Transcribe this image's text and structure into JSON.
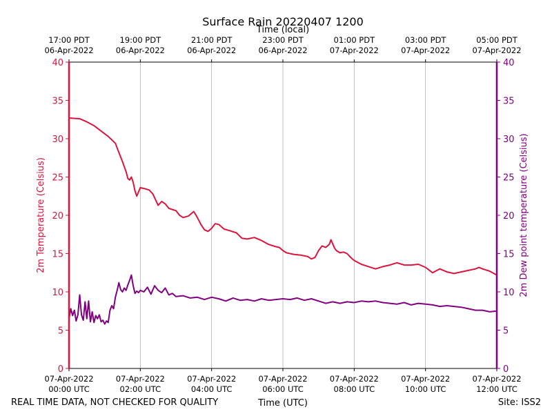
{
  "chart_data": {
    "type": "line",
    "title": "Surface Rain 20220407 1200",
    "top_axis_label": "Time (local)",
    "xlabel": "Time (UTC)",
    "ylabel_left": "2m Temperature (Celsius)",
    "ylabel_right": "2m Dew point temperature (Celsius)",
    "footer_left": "REAL TIME DATA, NOT CHECKED FOR QUALITY",
    "footer_right": "Site: ISS2",
    "xlim_hours_utc": [
      0,
      12
    ],
    "ylim": [
      0,
      40
    ],
    "y_ticks": [
      "0",
      "5",
      "10",
      "15",
      "20",
      "25",
      "30",
      "35",
      "40"
    ],
    "grid": "vertical",
    "bottom_ticks": [
      {
        "hour": 0,
        "date": "07-Apr-2022",
        "time": "00:00 UTC"
      },
      {
        "hour": 2,
        "date": "07-Apr-2022",
        "time": "02:00 UTC"
      },
      {
        "hour": 4,
        "date": "07-Apr-2022",
        "time": "04:00 UTC"
      },
      {
        "hour": 6,
        "date": "07-Apr-2022",
        "time": "06:00 UTC"
      },
      {
        "hour": 8,
        "date": "07-Apr-2022",
        "time": "08:00 UTC"
      },
      {
        "hour": 10,
        "date": "07-Apr-2022",
        "time": "10:00 UTC"
      },
      {
        "hour": 12,
        "date": "07-Apr-2022",
        "time": "12:00 UTC"
      }
    ],
    "top_ticks": [
      {
        "hour": 0,
        "time": "17:00 PDT",
        "date": "06-Apr-2022"
      },
      {
        "hour": 2,
        "time": "19:00 PDT",
        "date": "06-Apr-2022"
      },
      {
        "hour": 4,
        "time": "21:00 PDT",
        "date": "06-Apr-2022"
      },
      {
        "hour": 6,
        "time": "23:00 PDT",
        "date": "06-Apr-2022"
      },
      {
        "hour": 8,
        "time": "01:00 PDT",
        "date": "07-Apr-2022"
      },
      {
        "hour": 10,
        "time": "03:00 PDT",
        "date": "07-Apr-2022"
      },
      {
        "hour": 12,
        "time": "05:00 PDT",
        "date": "07-Apr-2022"
      }
    ],
    "series": [
      {
        "name": "2m Temperature",
        "color": "#dc143c",
        "x": [
          0,
          0.3,
          0.5,
          0.7,
          0.9,
          1.1,
          1.3,
          1.4,
          1.5,
          1.6,
          1.65,
          1.7,
          1.75,
          1.8,
          1.85,
          1.9,
          2.0,
          2.1,
          2.25,
          2.35,
          2.5,
          2.6,
          2.7,
          2.8,
          3.0,
          3.1,
          3.2,
          3.35,
          3.5,
          3.6,
          3.7,
          3.8,
          3.9,
          4.0,
          4.1,
          4.2,
          4.35,
          4.5,
          4.7,
          4.85,
          5.0,
          5.2,
          5.4,
          5.6,
          5.8,
          5.9,
          6.0,
          6.1,
          6.3,
          6.5,
          6.7,
          6.8,
          6.9,
          7.0,
          7.1,
          7.2,
          7.3,
          7.35,
          7.45,
          7.5,
          7.6,
          7.7,
          7.8,
          7.9,
          8.0,
          8.2,
          8.4,
          8.6,
          8.8,
          9.0,
          9.2,
          9.4,
          9.6,
          9.8,
          10.0,
          10.2,
          10.4,
          10.6,
          10.8,
          11.0,
          11.2,
          11.4,
          11.5,
          11.6,
          11.8,
          12.0
        ],
        "values": [
          32.7,
          32.6,
          32.2,
          31.7,
          31.0,
          30.3,
          29.4,
          28.2,
          27.0,
          25.7,
          24.8,
          24.6,
          25.0,
          24.3,
          23.2,
          22.5,
          23.6,
          23.5,
          23.3,
          22.8,
          21.3,
          21.8,
          21.5,
          20.9,
          20.6,
          20.0,
          19.7,
          19.9,
          20.5,
          19.7,
          18.8,
          18.1,
          17.9,
          18.3,
          18.9,
          18.8,
          18.2,
          18.0,
          17.7,
          17.0,
          16.9,
          17.1,
          16.7,
          16.2,
          15.9,
          15.8,
          15.4,
          15.1,
          14.9,
          14.8,
          14.6,
          14.3,
          14.5,
          15.4,
          16.0,
          15.8,
          16.2,
          16.8,
          15.7,
          15.4,
          15.1,
          15.2,
          15.0,
          14.5,
          14.1,
          13.6,
          13.3,
          13.0,
          13.3,
          13.5,
          13.8,
          13.5,
          13.5,
          13.6,
          13.2,
          12.5,
          13.0,
          12.6,
          12.4,
          12.6,
          12.8,
          13.0,
          13.2,
          13.0,
          12.7,
          12.2
        ]
      },
      {
        "name": "2m Dew point temperature",
        "color": "#800080",
        "x": [
          0,
          0.05,
          0.1,
          0.15,
          0.2,
          0.25,
          0.3,
          0.35,
          0.4,
          0.45,
          0.5,
          0.55,
          0.6,
          0.65,
          0.7,
          0.75,
          0.8,
          0.85,
          0.9,
          0.95,
          1.0,
          1.05,
          1.1,
          1.15,
          1.2,
          1.25,
          1.3,
          1.35,
          1.4,
          1.45,
          1.5,
          1.55,
          1.6,
          1.65,
          1.7,
          1.75,
          1.8,
          1.85,
          1.9,
          1.95,
          2.0,
          2.1,
          2.2,
          2.3,
          2.4,
          2.5,
          2.6,
          2.7,
          2.8,
          2.9,
          3.0,
          3.2,
          3.4,
          3.6,
          3.8,
          4.0,
          4.2,
          4.4,
          4.6,
          4.8,
          5.0,
          5.2,
          5.4,
          5.6,
          5.8,
          6.0,
          6.2,
          6.4,
          6.6,
          6.8,
          7.0,
          7.2,
          7.4,
          7.6,
          7.8,
          8.0,
          8.2,
          8.4,
          8.6,
          8.8,
          9.0,
          9.2,
          9.4,
          9.6,
          9.8,
          10.0,
          10.2,
          10.4,
          10.6,
          10.8,
          11.0,
          11.2,
          11.4,
          11.6,
          11.8,
          12.0
        ],
        "values": [
          6.5,
          7.8,
          6.9,
          7.6,
          6.2,
          7.0,
          9.6,
          7.0,
          6.3,
          8.7,
          6.5,
          8.8,
          6.1,
          7.4,
          6.0,
          6.9,
          6.5,
          7.0,
          6.1,
          6.3,
          5.8,
          6.2,
          6.0,
          7.6,
          8.2,
          7.8,
          9.3,
          10.2,
          11.2,
          10.3,
          10.0,
          10.5,
          10.2,
          10.9,
          11.5,
          12.2,
          10.8,
          9.8,
          10.1,
          9.9,
          10.2,
          10.0,
          10.6,
          9.7,
          10.8,
          10.2,
          9.9,
          10.5,
          9.6,
          9.8,
          9.4,
          9.5,
          9.2,
          9.3,
          9.0,
          9.3,
          9.1,
          8.8,
          9.2,
          8.9,
          9.0,
          8.8,
          9.1,
          8.9,
          9.0,
          9.1,
          9.0,
          9.2,
          8.9,
          9.1,
          8.8,
          8.5,
          8.7,
          8.5,
          8.7,
          8.6,
          8.8,
          8.7,
          8.8,
          8.6,
          8.5,
          8.4,
          8.6,
          8.3,
          8.5,
          8.4,
          8.3,
          8.1,
          8.2,
          8.1,
          8.0,
          7.8,
          7.6,
          7.6,
          7.4,
          7.5
        ]
      }
    ]
  }
}
